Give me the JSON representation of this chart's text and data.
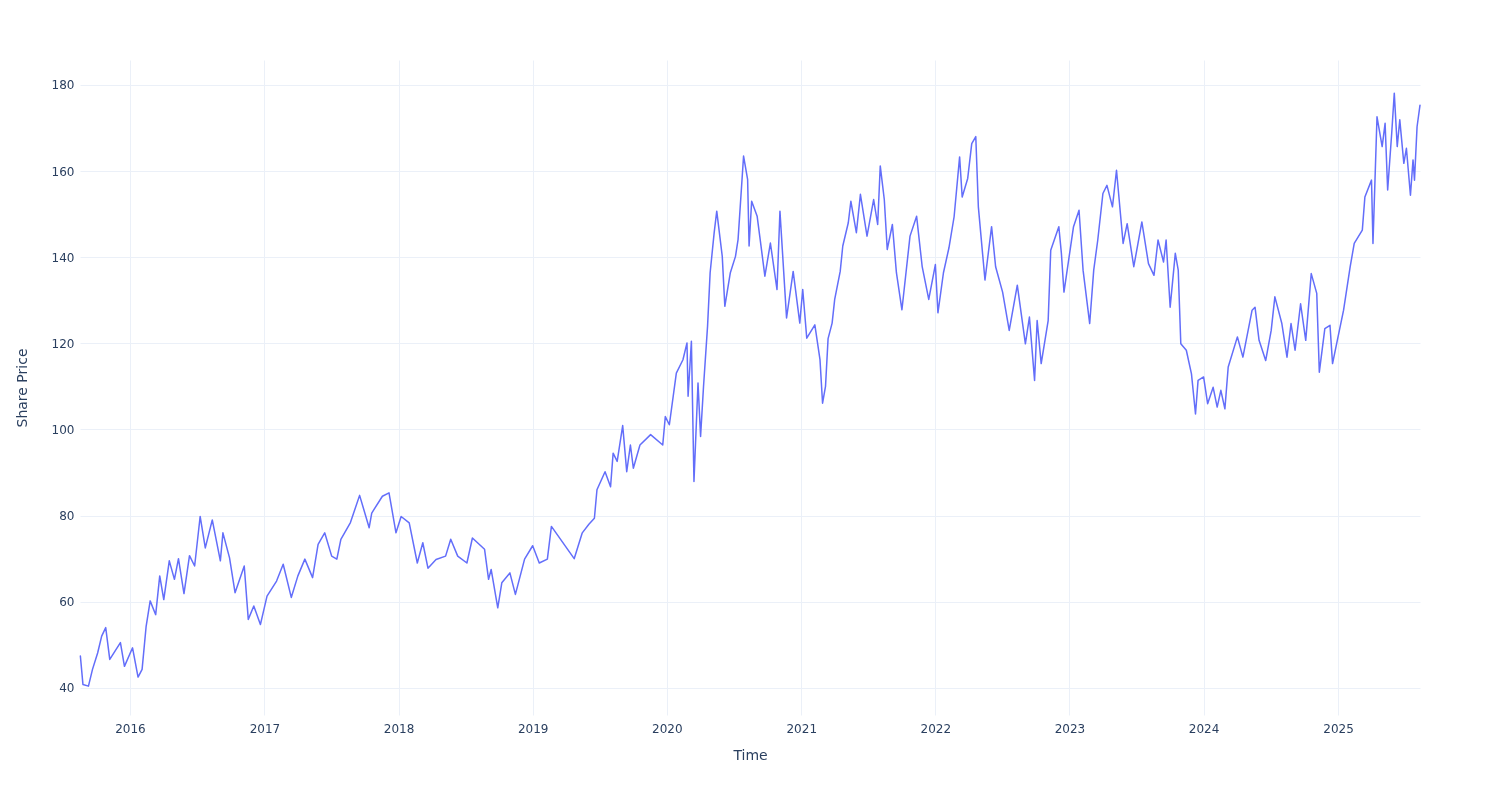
{
  "chart_data": {
    "type": "line",
    "xlabel": "Time",
    "ylabel": "Share Price",
    "grid": true,
    "xlim": [
      "2015-08-18",
      "2025-08-12"
    ],
    "xticks": [
      {
        "value": "2016-01-01",
        "label": "2016"
      },
      {
        "value": "2017-01-01",
        "label": "2017"
      },
      {
        "value": "2018-01-01",
        "label": "2018"
      },
      {
        "value": "2019-01-01",
        "label": "2019"
      },
      {
        "value": "2020-01-01",
        "label": "2020"
      },
      {
        "value": "2021-01-01",
        "label": "2021"
      },
      {
        "value": "2022-01-01",
        "label": "2022"
      },
      {
        "value": "2023-01-01",
        "label": "2023"
      },
      {
        "value": "2024-01-01",
        "label": "2024"
      },
      {
        "value": "2025-01-01",
        "label": "2025"
      }
    ],
    "ylim": [
      33.7,
      185.8
    ],
    "yticks": [
      40,
      60,
      80,
      100,
      120,
      140,
      160,
      180
    ],
    "x": [
      "2015-08-19",
      "2015-08-26",
      "2015-09-10",
      "2015-09-21",
      "2015-10-05",
      "2015-10-16",
      "2015-10-27",
      "2015-11-07",
      "2015-12-06",
      "2015-12-17",
      "2016-01-08",
      "2016-01-23",
      "2016-02-03",
      "2016-02-14",
      "2016-02-25",
      "2016-03-11",
      "2016-03-22",
      "2016-04-02",
      "2016-04-17",
      "2016-05-01",
      "2016-05-12",
      "2016-05-27",
      "2016-06-11",
      "2016-06-25",
      "2016-07-10",
      "2016-07-24",
      "2016-08-12",
      "2016-09-03",
      "2016-09-10",
      "2016-09-28",
      "2016-10-13",
      "2016-11-07",
      "2016-11-18",
      "2016-12-03",
      "2016-12-21",
      "2017-01-08",
      "2017-02-03",
      "2017-02-21",
      "2017-03-15",
      "2017-04-02",
      "2017-04-21",
      "2017-05-12",
      "2017-05-27",
      "2017-06-14",
      "2017-07-03",
      "2017-07-17",
      "2017-07-28",
      "2017-08-23",
      "2017-09-17",
      "2017-10-13",
      "2017-10-20",
      "2017-11-18",
      "2017-12-06",
      "2017-12-25",
      "2018-01-08",
      "2018-01-30",
      "2018-02-21",
      "2018-03-08",
      "2018-03-22",
      "2018-04-13",
      "2018-05-09",
      "2018-05-23",
      "2018-06-11",
      "2018-07-06",
      "2018-07-21",
      "2018-08-23",
      "2018-09-03",
      "2018-09-10",
      "2018-09-28",
      "2018-10-09",
      "2018-10-31",
      "2018-11-15",
      "2018-12-10",
      "2019-01-01",
      "2019-01-19",
      "2019-02-10",
      "2019-02-21",
      "2019-04-24",
      "2019-05-16",
      "2019-06-03",
      "2019-06-18",
      "2019-06-25",
      "2019-07-17",
      "2019-08-01",
      "2019-08-08",
      "2019-08-19",
      "2019-09-03",
      "2019-09-14",
      "2019-09-24",
      "2019-10-02",
      "2019-10-20",
      "2019-11-18",
      "2019-12-21",
      "2019-12-28",
      "2020-01-08",
      "2020-01-27",
      "2020-02-14",
      "2020-02-25",
      "2020-02-28",
      "2020-03-08",
      "2020-03-15",
      "2020-03-26",
      "2020-04-02",
      "2020-04-10",
      "2020-04-21",
      "2020-04-28",
      "2020-05-09",
      "2020-05-16",
      "2020-05-31",
      "2020-06-07",
      "2020-06-22",
      "2020-07-06",
      "2020-07-13",
      "2020-07-28",
      "2020-08-08",
      "2020-08-12",
      "2020-08-19",
      "2020-09-03",
      "2020-09-10",
      "2020-09-24",
      "2020-10-09",
      "2020-10-27",
      "2020-11-04",
      "2020-11-22",
      "2020-12-10",
      "2020-12-28",
      "2021-01-05",
      "2021-01-16",
      "2021-02-07",
      "2021-02-21",
      "2021-02-28",
      "2021-03-08",
      "2021-03-15",
      "2021-03-26",
      "2021-04-02",
      "2021-04-17",
      "2021-04-24",
      "2021-05-09",
      "2021-05-16",
      "2021-05-31",
      "2021-06-11",
      "2021-06-29",
      "2021-07-17",
      "2021-07-28",
      "2021-08-04",
      "2021-08-15",
      "2021-08-23",
      "2021-09-06",
      "2021-09-17",
      "2021-10-02",
      "2021-10-24",
      "2021-11-11",
      "2021-11-26",
      "2021-12-14",
      "2022-01-01",
      "2022-01-08",
      "2022-01-23",
      "2022-02-07",
      "2022-02-21",
      "2022-03-08",
      "2022-03-15",
      "2022-03-30",
      "2022-04-10",
      "2022-04-21",
      "2022-04-28",
      "2022-05-16",
      "2022-06-03",
      "2022-06-14",
      "2022-07-03",
      "2022-07-21",
      "2022-08-12",
      "2022-09-03",
      "2022-09-14",
      "2022-09-28",
      "2022-10-05",
      "2022-10-16",
      "2022-11-04",
      "2022-11-11",
      "2022-12-03",
      "2022-12-10",
      "2022-12-17",
      "2023-01-12",
      "2023-01-27",
      "2023-02-07",
      "2023-02-25",
      "2023-03-08",
      "2023-03-19",
      "2023-04-02",
      "2023-04-13",
      "2023-04-28",
      "2023-05-09",
      "2023-05-27",
      "2023-06-07",
      "2023-06-25",
      "2023-07-17",
      "2023-08-04",
      "2023-08-19",
      "2023-08-30",
      "2023-09-14",
      "2023-09-21",
      "2023-10-02",
      "2023-10-16",
      "2023-10-24",
      "2023-10-31",
      "2023-11-15",
      "2023-11-29",
      "2023-12-10",
      "2023-12-17",
      "2024-01-01",
      "2024-01-12",
      "2024-01-27",
      "2024-02-07",
      "2024-02-17",
      "2024-02-28",
      "2024-03-08",
      "2024-04-02",
      "2024-04-17",
      "2024-05-12",
      "2024-05-20",
      "2024-05-31",
      "2024-06-18",
      "2024-07-03",
      "2024-07-13",
      "2024-08-01",
      "2024-08-15",
      "2024-08-26",
      "2024-09-06",
      "2024-09-21",
      "2024-10-05",
      "2024-10-20",
      "2024-11-04",
      "2024-11-11",
      "2024-11-26",
      "2024-12-10",
      "2024-12-17",
      "2024-12-28",
      "2025-01-16",
      "2025-02-03",
      "2025-02-14",
      "2025-03-08",
      "2025-03-15",
      "2025-04-02",
      "2025-04-06",
      "2025-04-17",
      "2025-05-01",
      "2025-05-09",
      "2025-05-16",
      "2025-05-27",
      "2025-06-03",
      "2025-06-11",
      "2025-06-18",
      "2025-06-29",
      "2025-07-06",
      "2025-07-17",
      "2025-07-24",
      "2025-07-28",
      "2025-08-04",
      "2025-08-12"
    ],
    "series": [
      {
        "color": "#636efa",
        "values": [
          47.4,
          40.8,
          40.4,
          44.3,
          48.1,
          52,
          54,
          46.6,
          50.5,
          45,
          49.3,
          42.5,
          44.3,
          54.3,
          60.2,
          57,
          66,
          60.5,
          69.5,
          65.2,
          70,
          61.9,
          70.7,
          68.3,
          79.8,
          72.5,
          79,
          69.5,
          76,
          70.2,
          62.1,
          68.3,
          55.9,
          59,
          54.7,
          61.3,
          64.8,
          68.7,
          61,
          66,
          69.9,
          65.6,
          73.3,
          76,
          70.6,
          69.9,
          74.5,
          78.4,
          84.7,
          77.2,
          80.6,
          84.5,
          85.3,
          76,
          79.8,
          78.3,
          69,
          73.7,
          67.8,
          69.8,
          70.6,
          74.5,
          70.6,
          69,
          74.8,
          72.2,
          65.2,
          67.5,
          58.6,
          64.4,
          66.7,
          61.7,
          69.9,
          73,
          69,
          69.9,
          77.5,
          70,
          76,
          78,
          79.4,
          86,
          90.2,
          86.7,
          94.5,
          92.6,
          100.9,
          90.2,
          96.4,
          91,
          96.4,
          98.8,
          96.4,
          103,
          101.1,
          113.1,
          116.2,
          120.1,
          107.7,
          120.5,
          87.9,
          110.8,
          98.4,
          110,
          124,
          136.4,
          145.7,
          150.7,
          140.2,
          128.6,
          136.4,
          140.2,
          144.1,
          163.5,
          158.1,
          142.6,
          153,
          149.5,
          144.9,
          135.6,
          143.3,
          132.5,
          150.7,
          125.9,
          136.7,
          124.7,
          132.5,
          121.2,
          124.3,
          116.2,
          106.1,
          110,
          121.1,
          124.7,
          130.2,
          136.7,
          142.6,
          148,
          153,
          145.7,
          154.6,
          144.9,
          153.4,
          147.6,
          161.2,
          153.4,
          141.8,
          147.6,
          136.4,
          127.8,
          144.9,
          149.5,
          137.9,
          130.2,
          138.3,
          127.1,
          136.4,
          142.2,
          149.4,
          163.3,
          154,
          158.3,
          166.4,
          168,
          151.7,
          134.7,
          147.1,
          137.8,
          131.9,
          123,
          133.5,
          119.9,
          126.1,
          111.4,
          125.3,
          115.3,
          125.3,
          141.6,
          147.1,
          140.9,
          131.9,
          147.1,
          150.9,
          137,
          124.6,
          137,
          144,
          154.8,
          156.7,
          151.7,
          160.2,
          143.2,
          147.8,
          137.8,
          148.2,
          138.5,
          135.8,
          144,
          138.9,
          144,
          128.4,
          140.9,
          137,
          119.9,
          118.4,
          112.9,
          103.6,
          111.4,
          112.2,
          106,
          109.8,
          105.2,
          109.1,
          104.8,
          114.5,
          121.5,
          116.8,
          127.7,
          128.4,
          120.7,
          116,
          123,
          130.8,
          124.6,
          116.8,
          124.6,
          118.4,
          129.2,
          120.7,
          136.2,
          131.6,
          113.3,
          123.4,
          124.2,
          115.3,
          119.9,
          127.7,
          137.8,
          143.2,
          146.3,
          154,
          157.9,
          143.2,
          172.6,
          165.7,
          171.1,
          155.6,
          168.8,
          178.1,
          165.7,
          171.9,
          161.8,
          165.3,
          154.4,
          162.6,
          157.9,
          170.3,
          175.3
        ]
      }
    ]
  }
}
